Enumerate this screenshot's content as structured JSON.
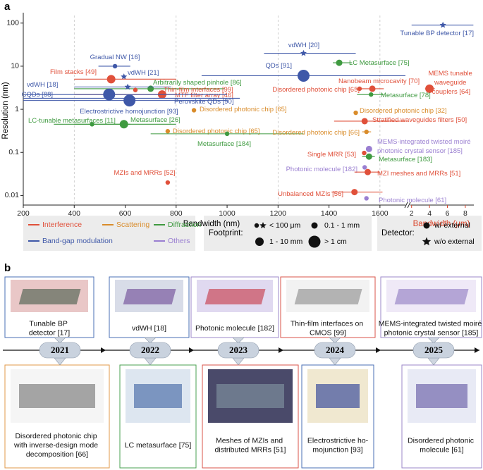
{
  "panel_labels": [
    "a",
    "b"
  ],
  "chart_data": {
    "type": "scatter",
    "xlabel": "Bandwidth (nm)",
    "x2label": "Bandwidth (μm)",
    "ylabel": "Resolution (nm)",
    "ylog": true,
    "ylim": [
      0.006,
      150
    ],
    "yticks": [
      0.01,
      0.1,
      1,
      10,
      100
    ],
    "xlim": [
      200,
      1700
    ],
    "xticks": [
      200,
      400,
      600,
      800,
      1000,
      1200,
      1400,
      1600
    ],
    "x2lim": [
      1.55,
      8.95
    ],
    "x2ticks": [
      2,
      4,
      6,
      8
    ],
    "x2color": "#d9452b",
    "grid": true,
    "groups": [
      {
        "name": "Interference",
        "color": "#e0503a"
      },
      {
        "name": "Scattering",
        "color": "#d98c2b"
      },
      {
        "name": "Diffraction",
        "color": "#3f9a40"
      },
      {
        "name": "Band-gap modulation",
        "color": "#3f58a8"
      },
      {
        "name": "Others",
        "color": "#9a7fd1"
      }
    ],
    "footprint_title": "Footprint:",
    "footprints": [
      "< 100 μm",
      "0.1 - 1 mm",
      "1 - 10 mm",
      "> 1 cm"
    ],
    "detector_title": "Detector:",
    "detectors": [
      "w/ external",
      "w/o external"
    ],
    "points": [
      {
        "label": "Tunable BP detector [17]",
        "x": 5.5,
        "y": 90,
        "xrange": [
          2,
          8.9
        ],
        "group": "Band-gap modulation",
        "footprint": "< 100 μm",
        "detector": "w/o external",
        "axis": "x2"
      },
      {
        "label": "vdWH [20]",
        "x": 1300,
        "y": 20,
        "xrange": [
          1145,
          1505
        ],
        "group": "Band-gap modulation",
        "footprint": "< 100 μm",
        "detector": "w/o external"
      },
      {
        "label": "LC Metasurface [75]",
        "x": 1440,
        "y": 12,
        "xrange": [
          1415,
          1490
        ],
        "group": "Diffraction",
        "footprint": "0.1 - 1 mm",
        "detector": "w/ external"
      },
      {
        "label": "Gradual NW [16]",
        "x": 560,
        "y": 10,
        "xrange": [
          495,
          620
        ],
        "group": "Band-gap modulation",
        "footprint": "< 100 μm",
        "detector": "w/ external"
      },
      {
        "label": "QDs [91]",
        "x": 1300,
        "y": 6,
        "xrange": [
          900,
          1700
        ],
        "group": "Band-gap modulation",
        "footprint": "> 1 cm",
        "detector": "w/ external"
      },
      {
        "label": "vdWH [21]",
        "x": 595,
        "y": 5.7,
        "group": "Band-gap modulation",
        "footprint": "< 100 μm",
        "detector": "w/o external"
      },
      {
        "label": "Film stacks [49]",
        "x": 545,
        "y": 5,
        "xrange": [
          400,
          800
        ],
        "group": "Interference",
        "footprint": "1 - 10 mm",
        "detector": "w/ external"
      },
      {
        "label": "Arbitrarily shaped pinhole [86]",
        "x": 700,
        "y": 3,
        "xrange": [
          400,
          990
        ],
        "group": "Diffraction",
        "footprint": "0.1 - 1 mm",
        "detector": "w/ external"
      },
      {
        "label": "Nanobeam microcavity [70]",
        "x": 1570,
        "y": 3,
        "xrange": [
          1505,
          1615
        ],
        "group": "Interference",
        "footprint": "0.1 - 1 mm",
        "detector": "w/ external"
      },
      {
        "label": "MEMS tunable waveguide couplers [64]",
        "x": 4,
        "y": 3,
        "xrange": [
          3.5,
          4.6
        ],
        "group": "Interference",
        "footprint": "1 - 10 mm",
        "detector": "w/ external",
        "axis": "x2"
      },
      {
        "label": "vdWH [18]",
        "x": 610,
        "y": 3.3,
        "xrange": [
          400,
          780
        ],
        "group": "Band-gap modulation",
        "footprint": "< 100 μm",
        "detector": "w/o external"
      },
      {
        "label": "Thin-film interfaces [99]",
        "x": 640,
        "y": 2.8,
        "group": "Interference",
        "footprint": "< 100 μm",
        "detector": "w/ external"
      },
      {
        "label": "Disordered photonic chip [65]",
        "x": 1520,
        "y": 3,
        "group": "Interference",
        "footprint": "< 100 μm",
        "detector": "w/ external"
      },
      {
        "label": "Metasurface [78]",
        "x": 1565,
        "y": 2.2,
        "xrange": [
          1510,
          1615
        ],
        "group": "Diffraction",
        "footprint": "< 100 μm",
        "detector": "w/ external"
      },
      {
        "label": "MTF filter array [46]",
        "x": 745,
        "y": 2.2,
        "xrange": [
          400,
          800
        ],
        "group": "Interference",
        "footprint": "1 - 10 mm",
        "detector": "w/ external"
      },
      {
        "label": "CQDs [88]",
        "x": 537,
        "y": 2.2,
        "xrange": [
          200,
          1000
        ],
        "group": "Band-gap modulation",
        "footprint": "> 1 cm",
        "detector": "w/ external"
      },
      {
        "label": "Perovskite QDs [90]",
        "x": 620,
        "y": 1.8,
        "xrange": [
          200,
          1050
        ],
        "group": "Band-gap modulation",
        "footprint": "< 100 μm",
        "detector": "w/o external"
      },
      {
        "label": "Electrostrictive homojunction [93]",
        "x": 617,
        "y": 1.6,
        "xrange": [
          200,
          1000
        ],
        "group": "Band-gap modulation",
        "footprint": "> 1 cm",
        "detector": "w/ external"
      },
      {
        "label": "Disordered photonic chip [65]",
        "x": 870,
        "y": 0.95,
        "group": "Scattering",
        "footprint": "< 100 μm",
        "detector": "w/ external"
      },
      {
        "label": "Disordered photonic chip [32]",
        "x": 1505,
        "y": 0.83,
        "group": "Scattering",
        "footprint": "< 100 μm",
        "detector": "w/ external"
      },
      {
        "label": "LC-tunable metasurfaces [11]",
        "x": 470,
        "y": 0.45,
        "xrange": [
          320,
          620
        ],
        "group": "Diffraction",
        "footprint": "< 100 μm",
        "detector": "w/ external"
      },
      {
        "label": "Metasurface [26]",
        "x": 595,
        "y": 0.45,
        "xrange": [
          400,
          800
        ],
        "group": "Diffraction",
        "footprint": "1 - 10 mm",
        "detector": "w/ external"
      },
      {
        "label": "Stratified waveguides filters [50]",
        "x": 1540,
        "y": 0.53,
        "xrange": [
          1420,
          1700
        ],
        "group": "Interference",
        "footprint": "0.1 - 1 mm",
        "detector": "w/ external"
      },
      {
        "label": "Disordered photonic chip [65]",
        "x": 767,
        "y": 0.31,
        "group": "Scattering",
        "footprint": "< 100 μm",
        "detector": "w/ external"
      },
      {
        "label": "Metasurface [184]",
        "x": 1000,
        "y": 0.27,
        "xrange": [
          700,
          1300
        ],
        "group": "Diffraction",
        "footprint": "< 100 μm",
        "detector": "w/ external"
      },
      {
        "label": "Disordered photonic chip [66]",
        "x": 1547,
        "y": 0.3,
        "xrange": [
          1530,
          1565
        ],
        "group": "Scattering",
        "footprint": "< 100 μm",
        "detector": "w/ external"
      },
      {
        "label": "MEMS-integrated twisted moiré photonic crystal sensor [185]",
        "x": 1557,
        "y": 0.12,
        "group": "Others",
        "footprint": "0.1 - 1 mm",
        "detector": "w/ external"
      },
      {
        "label": "Single MRR [53]",
        "x": 1538,
        "y": 0.097,
        "group": "Interference",
        "footprint": "< 100 μm",
        "detector": "w/ external"
      },
      {
        "label": "Metasurface [183]",
        "x": 1557,
        "y": 0.08,
        "xrange": [
          1530,
          1580
        ],
        "group": "Diffraction",
        "footprint": "0.1 - 1 mm",
        "detector": "w/ external"
      },
      {
        "label": "Photonic molecule [182]",
        "x": 1540,
        "y": 0.045,
        "group": "Others",
        "footprint": "< 100 μm",
        "detector": "w/ external"
      },
      {
        "label": "MZI meshes and MRRs [51]",
        "x": 1552,
        "y": 0.035,
        "xrange": [
          1500,
          1600
        ],
        "group": "Interference",
        "footprint": "0.1 - 1 mm",
        "detector": "w/ external"
      },
      {
        "label": "MZIs and MRRs [52]",
        "x": 767,
        "y": 0.02,
        "group": "Interference",
        "footprint": "< 100 μm",
        "detector": "w/ external"
      },
      {
        "label": "Unbalanced MZIs [56]",
        "x": 1500,
        "y": 0.012,
        "xrange": [
          1410,
          1610
        ],
        "group": "Interference",
        "footprint": "0.1 - 1 mm",
        "detector": "w/ external"
      },
      {
        "label": "Photonic molecule [61]",
        "x": 1547,
        "y": 0.0086,
        "group": "Others",
        "footprint": "< 100 μm",
        "detector": "w/ external"
      }
    ]
  },
  "timeline": {
    "years": [
      "2021",
      "2022",
      "2023",
      "2024",
      "2025"
    ],
    "top": [
      {
        "caption": "Tunable BP detector [17]",
        "color": "#4a6fb5"
      },
      {
        "caption": "vdWH [18]",
        "color": "#4a6fb5"
      },
      {
        "caption": "Photonic molecule [182]",
        "color": "#9b87c8"
      },
      {
        "caption": "Thin-film interfaces on CMOS [99]",
        "color": "#d9534a"
      },
      {
        "caption": "MEMS-integrated twisted moiré photonic crystal sensor [185]",
        "color": "#9b87c8"
      }
    ],
    "bottom": [
      {
        "caption": "Disordered photonic chip with inverse-design mode decomposition [66]",
        "color": "#e09a4a"
      },
      {
        "caption": "LC metasurface [75]",
        "color": "#4aa050"
      },
      {
        "caption": "Meshes of MZIs and distributed MRRs [51]",
        "color": "#d9534a"
      },
      {
        "caption": "Electrostrictive ho-mojunction [93]",
        "color": "#4a6fb5"
      },
      {
        "caption": "Disordered photonic molecule [61]",
        "color": "#9b87c8"
      }
    ]
  }
}
